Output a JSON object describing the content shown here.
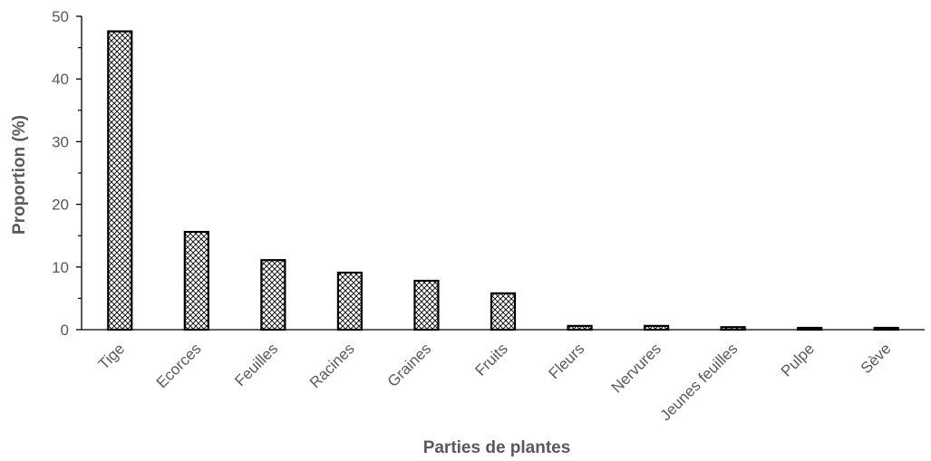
{
  "chart_data": {
    "type": "bar",
    "categories": [
      "Tige",
      "Ecorces",
      "Feuilles",
      "Racines",
      "Graines",
      "Fruits",
      "Fleurs",
      "Nervures",
      "Jeunes feuilles",
      "Pulpe",
      "Sève"
    ],
    "values": [
      47.6,
      15.6,
      11.1,
      9.1,
      7.8,
      5.8,
      0.6,
      0.6,
      0.4,
      0.2,
      0.2
    ],
    "title": "",
    "xlabel": "Parties de plantes",
    "ylabel": "Proportion (%)",
    "ylim": [
      0,
      50
    ],
    "yticks": [
      0,
      10,
      20,
      30,
      40,
      50
    ],
    "grid": false,
    "legend": "none",
    "bar_pattern": "crosshatch",
    "colors": {
      "bar_outline": "#000000",
      "pattern": "#000000",
      "text": "#595959",
      "axis": "#000000"
    }
  }
}
